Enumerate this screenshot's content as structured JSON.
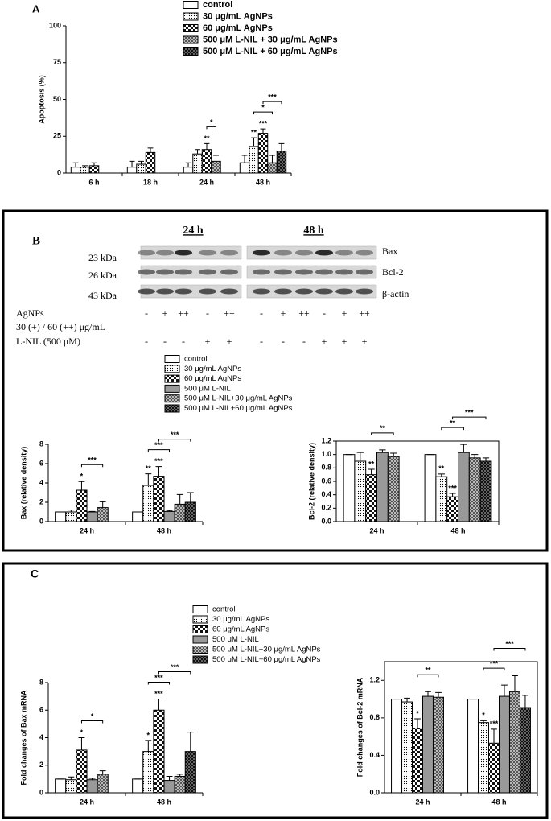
{
  "panel_labels": [
    "A",
    "B",
    "C"
  ],
  "blot": {
    "time_labels": [
      "24 h",
      "48 h"
    ],
    "proteins": [
      "Bax",
      "Bcl-2",
      "β-actin"
    ],
    "sizes": [
      "23 kDa",
      "26 kDa",
      "43 kDa"
    ],
    "treatment_labels": [
      "AgNPs",
      "30 (+) / 60 (++) μg/mL",
      "L-NIL (500 μM)"
    ],
    "agnps": [
      "-",
      "+",
      "++",
      "-",
      "++",
      "-",
      "+",
      "++",
      "-",
      "+",
      "++"
    ],
    "lnil": [
      "-",
      "-",
      "-",
      "+",
      "+",
      "-",
      "-",
      "-",
      "+",
      "+",
      "+"
    ]
  },
  "chart_data": [
    {
      "type": "bar",
      "ylabel": "Apoptosis (%)",
      "categories": [
        "6 h",
        "18 h",
        "24 h",
        "48 h"
      ],
      "ylim": [
        0,
        100
      ],
      "yticks": [
        0,
        25,
        50,
        75,
        100
      ],
      "series": [
        {
          "name": "control",
          "fill": "white",
          "values": [
            4,
            4,
            4,
            7
          ],
          "errors": [
            3,
            4,
            3,
            5
          ]
        },
        {
          "name": "30 μg/mL AgNPs",
          "fill": "dots",
          "values": [
            4,
            6,
            13,
            18
          ],
          "errors": [
            1,
            2,
            3,
            6
          ]
        },
        {
          "name": "60 μg/mL AgNPs",
          "fill": "checker",
          "values": [
            5,
            14,
            16,
            27
          ],
          "errors": [
            2,
            3,
            4,
            3
          ]
        },
        {
          "name": "500 μM L-NIL + 30 μg/mL AgNPs",
          "fill": "checker-gray",
          "values": [
            null,
            null,
            8,
            7
          ],
          "errors": [
            null,
            null,
            4,
            5
          ]
        },
        {
          "name": "500 μM L-NIL + 60 μg/mL AgNPs",
          "fill": "checker-dark",
          "values": [
            null,
            null,
            null,
            15
          ],
          "errors": [
            null,
            null,
            null,
            5
          ]
        }
      ],
      "marks": [
        {
          "text": "**",
          "category": 2,
          "series": 2
        },
        {
          "text": "**",
          "category": 3,
          "series": 1
        },
        {
          "text": "***",
          "category": 3,
          "series": 2
        }
      ],
      "brackets": [
        {
          "text": "*",
          "category": 2,
          "from": 2,
          "to": 3
        },
        {
          "text": "*",
          "category": 3,
          "from": 1,
          "to": 3
        },
        {
          "text": "***",
          "category": 3,
          "from": 2,
          "to": 4
        }
      ]
    },
    {
      "type": "bar",
      "ylabel": "Bax (relative density)",
      "categories": [
        "24 h",
        "48 h"
      ],
      "ylim": [
        0,
        8
      ],
      "yticks": [
        0,
        2,
        4,
        6,
        8
      ],
      "series": [
        {
          "name": "control",
          "fill": "white",
          "values": [
            1,
            1
          ],
          "errors": [
            0,
            0
          ]
        },
        {
          "name": "30 μg/mL AgNPs",
          "fill": "dots",
          "values": [
            1,
            3.75
          ],
          "errors": [
            0.2,
            1.2
          ]
        },
        {
          "name": "60 μg/mL AgNPs",
          "fill": "checker",
          "values": [
            3.25,
            4.7
          ],
          "errors": [
            0.9,
            1
          ]
        },
        {
          "name": "500 μM L-NIL",
          "fill": "gray",
          "values": [
            1,
            1.05
          ],
          "errors": [
            0.05,
            0.1
          ]
        },
        {
          "name": "500 μM L-NIL+30 μg/mL AgNPs",
          "fill": "checker-gray",
          "values": [
            1.45,
            1.8
          ],
          "errors": [
            0.6,
            1
          ]
        },
        {
          "name": "500 μM L-NIL+60 μg/mL AgNPs",
          "fill": "checker-dark",
          "values": [
            null,
            2
          ],
          "errors": [
            null,
            1
          ]
        }
      ],
      "marks": [
        {
          "text": "*",
          "category": 0,
          "series": 2
        },
        {
          "text": "**",
          "category": 1,
          "series": 1
        },
        {
          "text": "***",
          "category": 1,
          "series": 2
        }
      ],
      "brackets": [
        {
          "text": "***",
          "category": 0,
          "from": 2,
          "to": 4
        },
        {
          "text": "***",
          "category": 1,
          "from": 1,
          "to": 3
        },
        {
          "text": "***",
          "category": 1,
          "from": 2,
          "to": 5
        }
      ]
    },
    {
      "type": "bar",
      "ylabel": "Bcl-2 (relative density)",
      "frame": true,
      "categories": [
        "24 h",
        "48 h"
      ],
      "ylim": [
        0,
        1.2
      ],
      "yticks": [
        {
          "value": 0,
          "label": "0.0"
        },
        0.2,
        0.4,
        0.6,
        0.8,
        {
          "value": 1,
          "label": "1.0"
        },
        1.2
      ],
      "series": [
        {
          "fill": "white",
          "values": [
            1,
            1
          ],
          "errors": [
            0,
            0
          ]
        },
        {
          "fill": "dots",
          "values": [
            0.9,
            0.67
          ],
          "errors": [
            0.13,
            0.04
          ]
        },
        {
          "fill": "checker",
          "values": [
            0.7,
            0.37
          ],
          "errors": [
            0.08,
            0.05
          ]
        },
        {
          "fill": "gray",
          "values": [
            1.03,
            1.03
          ],
          "errors": [
            0.04,
            0.12
          ]
        },
        {
          "fill": "checker-gray",
          "values": [
            0.97,
            0.95
          ],
          "errors": [
            0.05,
            0.05
          ]
        },
        {
          "fill": "checker-dark",
          "values": [
            null,
            0.9
          ],
          "errors": [
            null,
            0.05
          ]
        }
      ],
      "marks": [
        {
          "text": "**",
          "category": 0,
          "series": 2
        },
        {
          "text": "**",
          "category": 1,
          "series": 1
        },
        {
          "text": "***",
          "category": 1,
          "series": 2
        }
      ],
      "brackets": [
        {
          "text": "**",
          "category": 0,
          "from": 2,
          "to": 4
        },
        {
          "text": "**",
          "category": 1,
          "from": 1,
          "to": 3
        },
        {
          "text": "***",
          "category": 1,
          "from": 2,
          "to": 5
        }
      ]
    },
    {
      "type": "bar",
      "ylabel": "Fold changes of Bax mRNA",
      "categories": [
        "24 h",
        "48 h"
      ],
      "ylim": [
        0,
        8
      ],
      "yticks": [
        0,
        2,
        4,
        6,
        8
      ],
      "series": [
        {
          "name": "control",
          "fill": "white",
          "values": [
            1,
            1
          ],
          "errors": [
            0,
            0
          ]
        },
        {
          "name": "30 μg/mL AgNPs",
          "fill": "dots",
          "values": [
            0.95,
            3
          ],
          "errors": [
            0.2,
            0.8
          ]
        },
        {
          "name": "60 μg/mL AgNPs",
          "fill": "checker",
          "values": [
            3.1,
            6
          ],
          "errors": [
            0.9,
            0.8
          ]
        },
        {
          "name": "500 μM L-NIL",
          "fill": "gray",
          "values": [
            0.95,
            0.9
          ],
          "errors": [
            0.1,
            0.3
          ]
        },
        {
          "name": "500 μM L-NIL+30 μg/mL AgNPs",
          "fill": "checker-gray",
          "values": [
            1.35,
            1.2
          ],
          "errors": [
            0.25,
            0.15
          ]
        },
        {
          "name": "500 μM L-NIL+60 μg/mL AgNPs",
          "fill": "checker-dark",
          "values": [
            null,
            3
          ],
          "errors": [
            null,
            1.4
          ]
        }
      ],
      "marks": [
        {
          "text": "*",
          "category": 0,
          "series": 2
        },
        {
          "text": "*",
          "category": 1,
          "series": 1
        },
        {
          "text": "***",
          "category": 1,
          "series": 2
        }
      ],
      "brackets": [
        {
          "text": "*",
          "category": 0,
          "from": 2,
          "to": 4
        },
        {
          "text": "***",
          "category": 1,
          "from": 1,
          "to": 3
        },
        {
          "text": "***",
          "category": 1,
          "from": 2,
          "to": 5
        }
      ]
    },
    {
      "type": "bar",
      "ylabel": "Fold changes of Bcl-2 mRNA",
      "frame": true,
      "categories": [
        "24 h",
        "48 h"
      ],
      "ylim": [
        0,
        1.4
      ],
      "yticks": [
        {
          "value": 0,
          "label": "0.0"
        },
        0.4,
        0.8,
        1.2
      ],
      "series": [
        {
          "fill": "white",
          "values": [
            1,
            1
          ],
          "errors": [
            0,
            0
          ]
        },
        {
          "fill": "dots",
          "values": [
            0.97,
            0.75
          ],
          "errors": [
            0.04,
            0.02
          ]
        },
        {
          "fill": "checker",
          "values": [
            0.69,
            0.53
          ],
          "errors": [
            0.1,
            0.15
          ]
        },
        {
          "fill": "gray",
          "values": [
            1.03,
            1.03
          ],
          "errors": [
            0.05,
            0.12
          ]
        },
        {
          "fill": "checker-gray",
          "values": [
            1.02,
            1.08
          ],
          "errors": [
            0.05,
            0.17
          ]
        },
        {
          "fill": "checker-dark",
          "values": [
            null,
            0.91
          ],
          "errors": [
            null,
            0.13
          ]
        }
      ],
      "marks": [
        {
          "text": "*",
          "category": 0,
          "series": 2
        },
        {
          "text": "*",
          "category": 1,
          "series": 1
        },
        {
          "text": "***",
          "category": 1,
          "series": 2
        }
      ],
      "brackets": [
        {
          "text": "**",
          "category": 0,
          "from": 2,
          "to": 4
        },
        {
          "text": "***",
          "category": 1,
          "from": 1,
          "to": 3
        },
        {
          "text": "***",
          "category": 1,
          "from": 2,
          "to": 5
        }
      ]
    }
  ]
}
